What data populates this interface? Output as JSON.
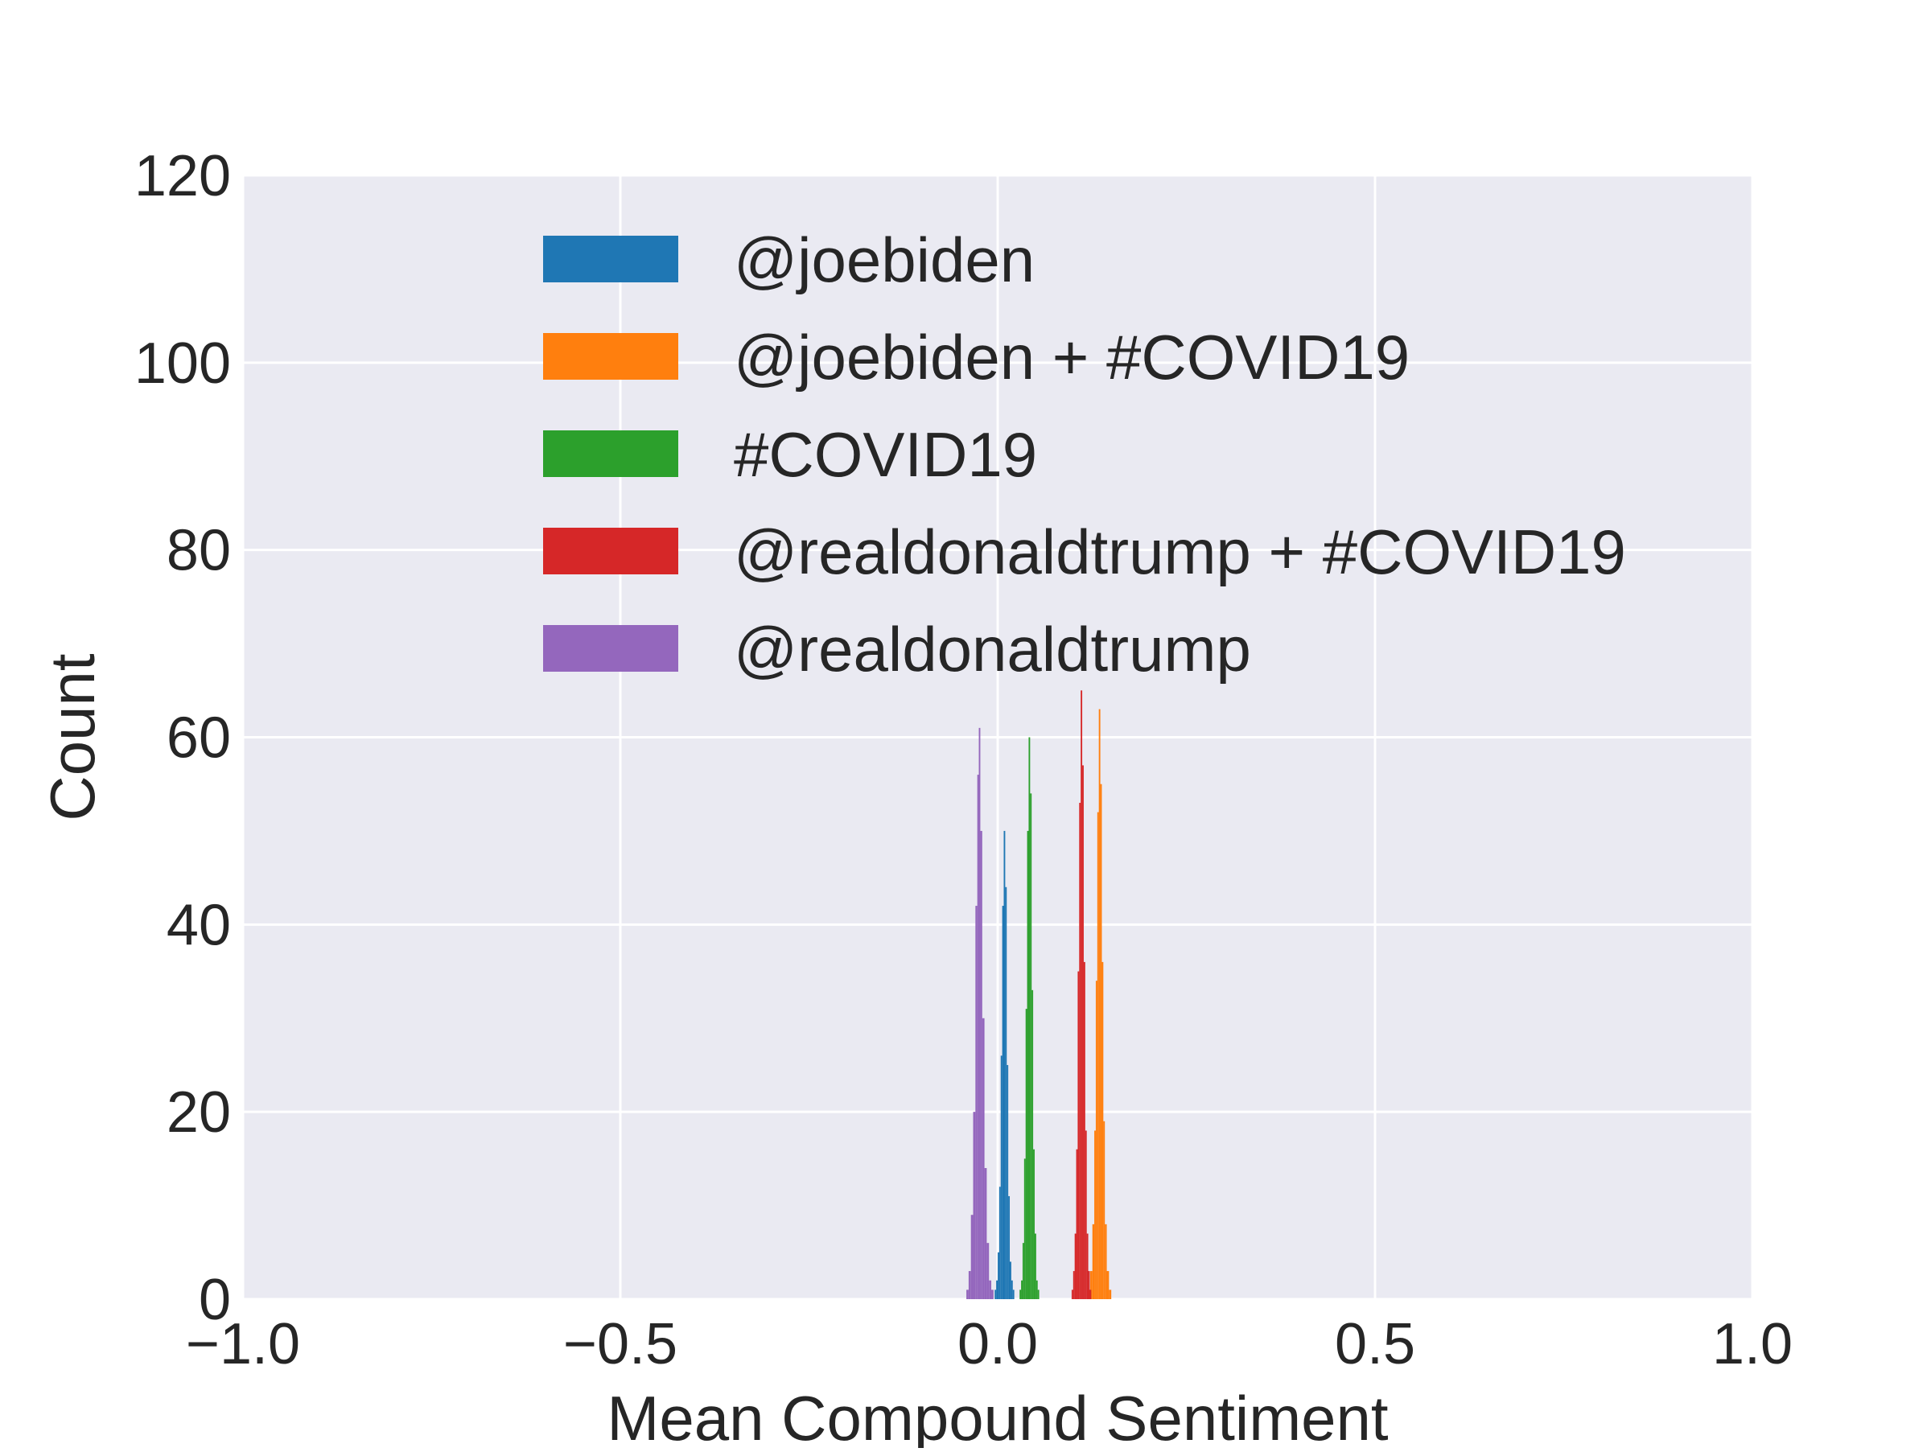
{
  "chart_data": {
    "type": "histogram",
    "title": "",
    "xlabel": "Mean Compound Sentiment",
    "ylabel": "Count",
    "xlim": [
      -1.0,
      1.0
    ],
    "ylim": [
      0,
      120
    ],
    "x_ticks": [
      -1.0,
      -0.5,
      0.0,
      0.5,
      1.0
    ],
    "x_tick_labels": [
      "−1.0",
      "−0.5",
      "0.0",
      "0.5",
      "1.0"
    ],
    "y_ticks": [
      0,
      20,
      40,
      60,
      80,
      100,
      120
    ],
    "y_tick_labels": [
      "0",
      "20",
      "40",
      "60",
      "80",
      "100",
      "120"
    ],
    "grid": true,
    "background_color": "#eaeaf2",
    "legend_position": "upper-center",
    "series": [
      {
        "name": "@joebiden",
        "color": "#1f77b4",
        "center": 0.009,
        "spread": 0.011,
        "peak": 50,
        "x": [
          -0.003,
          -0.001,
          0.001,
          0.003,
          0.005,
          0.007,
          0.009,
          0.011,
          0.013,
          0.015,
          0.017,
          0.019,
          0.021
        ],
        "counts": [
          1,
          2,
          5,
          12,
          26,
          42,
          50,
          44,
          25,
          11,
          4,
          2,
          1
        ]
      },
      {
        "name": "@joebiden + #COVID19",
        "color": "#ff7f0e",
        "center": 0.135,
        "spread": 0.014,
        "peak": 63,
        "x": [
          0.121,
          0.124,
          0.127,
          0.129,
          0.131,
          0.133,
          0.135,
          0.137,
          0.139,
          0.141,
          0.143,
          0.146,
          0.149
        ],
        "counts": [
          1,
          3,
          8,
          18,
          34,
          52,
          63,
          55,
          36,
          19,
          8,
          3,
          1
        ]
      },
      {
        "name": "#COVID19",
        "color": "#2ca02c",
        "center": 0.042,
        "spread": 0.012,
        "peak": 60,
        "x": [
          0.03,
          0.032,
          0.034,
          0.036,
          0.038,
          0.04,
          0.042,
          0.044,
          0.046,
          0.048,
          0.05,
          0.052,
          0.054
        ],
        "counts": [
          1,
          2,
          6,
          15,
          31,
          50,
          60,
          54,
          33,
          16,
          7,
          2,
          1
        ]
      },
      {
        "name": "@realdonaldtrump + #COVID19",
        "color": "#d62728",
        "center": 0.111,
        "spread": 0.012,
        "peak": 65,
        "x": [
          0.099,
          0.101,
          0.103,
          0.105,
          0.107,
          0.109,
          0.111,
          0.113,
          0.115,
          0.117,
          0.119,
          0.121,
          0.123
        ],
        "counts": [
          1,
          3,
          7,
          16,
          35,
          53,
          65,
          57,
          36,
          18,
          7,
          3,
          1
        ]
      },
      {
        "name": "@realdonaldtrump",
        "color": "#9467bd",
        "center": -0.025,
        "spread": 0.015,
        "peak": 61,
        "x": [
          -0.04,
          -0.037,
          -0.034,
          -0.031,
          -0.028,
          -0.026,
          -0.024,
          -0.022,
          -0.019,
          -0.016,
          -0.013,
          -0.01,
          -0.007
        ],
        "counts": [
          1,
          3,
          9,
          20,
          42,
          56,
          61,
          50,
          30,
          14,
          6,
          2,
          1
        ]
      }
    ]
  }
}
